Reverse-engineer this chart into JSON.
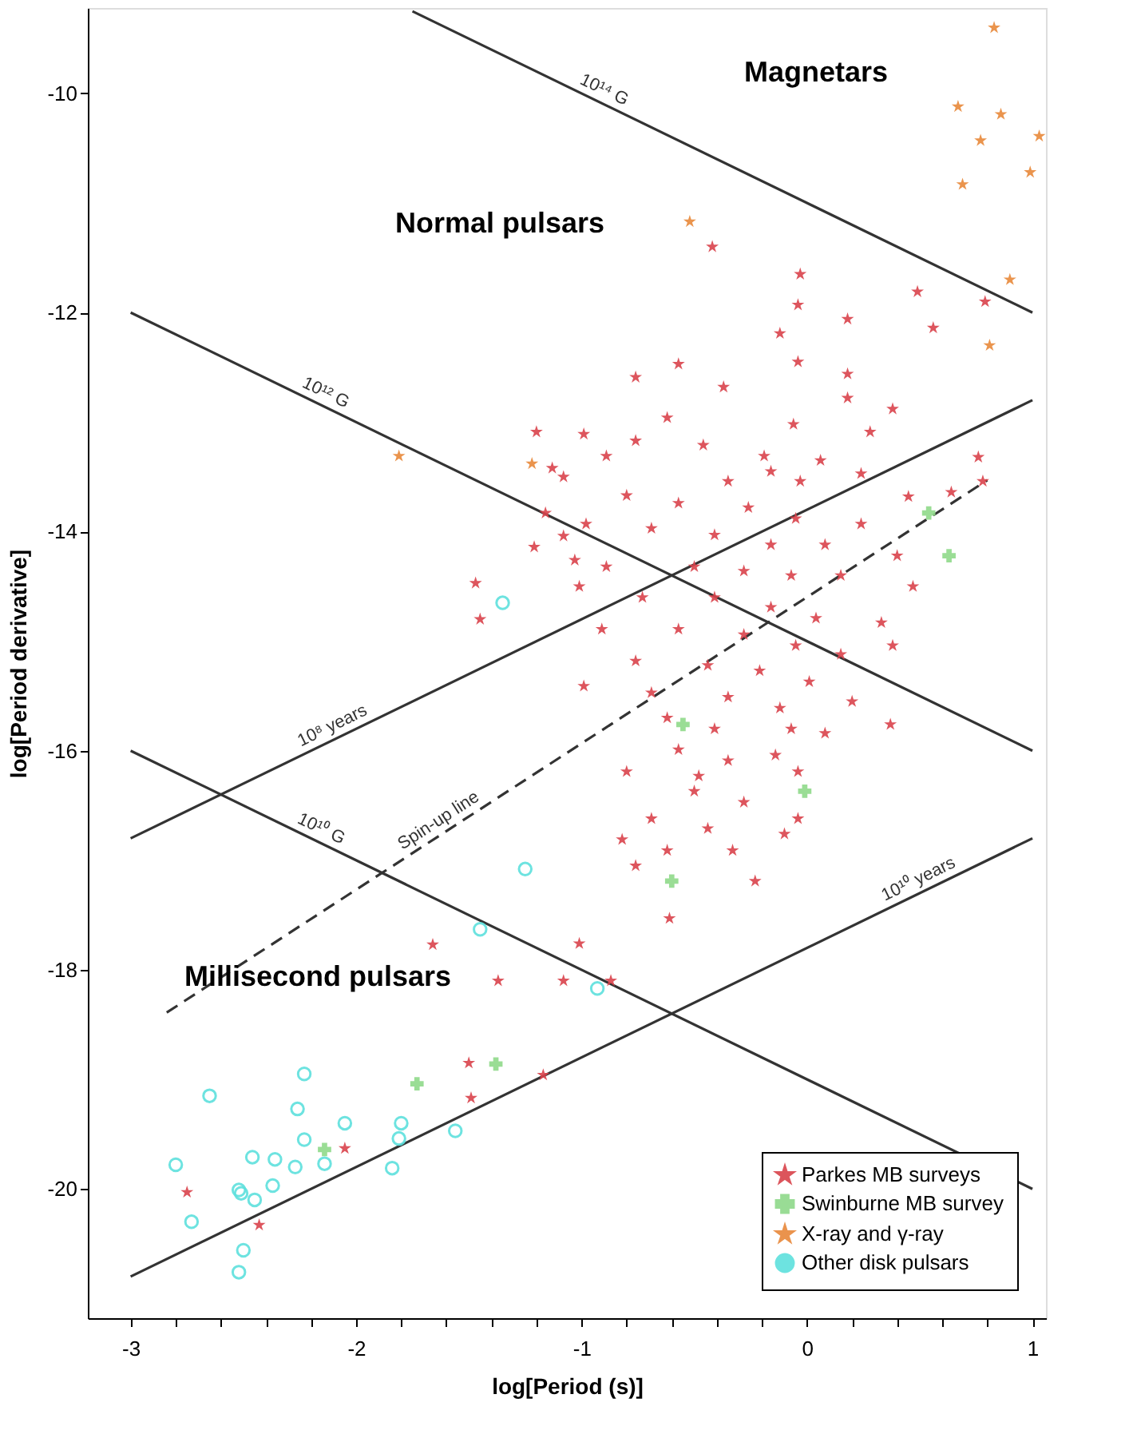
{
  "chart_data": {
    "type": "scatter",
    "xlabel": "log[Period (s)]",
    "ylabel": "log[Period derivative]",
    "xlim": [
      -3.19,
      1.06
    ],
    "ylim": [
      -21.18,
      -9.22
    ],
    "xticks": [
      -3,
      {
        "value": -2.8,
        "label": null
      },
      {
        "value": -2.6,
        "label": null
      },
      {
        "value": -2.4,
        "label": null
      },
      {
        "value": -2.2,
        "label": null
      },
      -2,
      {
        "value": -1.8,
        "label": null
      },
      {
        "value": -1.6,
        "label": null
      },
      {
        "value": -1.4,
        "label": null
      },
      {
        "value": -1.2,
        "label": null
      },
      -1,
      {
        "value": -0.8,
        "label": null
      },
      {
        "value": -0.6,
        "label": null
      },
      {
        "value": -0.4,
        "label": null
      },
      {
        "value": -0.2,
        "label": null
      },
      0,
      {
        "value": 0.2,
        "label": null
      },
      {
        "value": 0.4,
        "label": null
      },
      {
        "value": 0.6,
        "label": null
      },
      {
        "value": 0.8,
        "label": null
      },
      1
    ],
    "yticks": [
      -20,
      -18,
      -16,
      -14,
      -12,
      -10
    ],
    "grid": false,
    "legend": "bottom right",
    "series": [
      {
        "type": "line",
        "name": "10¹⁴ G",
        "color": "#333333",
        "line_style": "solid",
        "marker": "none",
        "x": [
          -1.75,
          1.0
        ],
        "values": [
          -9.25,
          -12.0
        ]
      },
      {
        "type": "line",
        "name": "10¹² G",
        "color": "#333333",
        "line_style": "solid",
        "marker": "none",
        "x": [
          -3,
          1
        ],
        "values": [
          -12,
          -16
        ]
      },
      {
        "type": "line",
        "name": "10¹⁰ G",
        "color": "#333333",
        "line_style": "solid",
        "marker": "none",
        "x": [
          -3,
          1
        ],
        "values": [
          -16,
          -20
        ]
      },
      {
        "type": "line",
        "name": "10⁸ years",
        "color": "#333333",
        "line_style": "solid",
        "marker": "none",
        "x": [
          -3,
          1
        ],
        "values": [
          -16.8,
          -12.8
        ]
      },
      {
        "type": "line",
        "name": "10¹⁰ years",
        "color": "#333333",
        "line_style": "solid",
        "marker": "none",
        "x": [
          -3,
          1
        ],
        "values": [
          -20.8,
          -16.8
        ]
      },
      {
        "type": "line",
        "name": "Spin-up line",
        "color": "#333333",
        "line_style": "dashed",
        "marker": "none",
        "x": [
          -2.84,
          0.8
        ],
        "values": [
          -18.39,
          -13.53
        ]
      },
      {
        "name": "Parkes MB surveys",
        "color": "#d9434b",
        "marker": "star",
        "x": [
          -1.2,
          -0.99,
          -1.13,
          -1.08,
          -1.16,
          -1.21,
          -1.03,
          -1.47,
          -1.01,
          -1.08,
          -1.45,
          -1.66,
          -1.01,
          -1.37,
          -1.08,
          -1.5,
          -1.17,
          -1.49,
          -2.05,
          -2.75,
          -2.43,
          -0.87,
          -0.42,
          -0.03,
          -0.04,
          0.18,
          -0.12,
          0.49,
          0.56,
          0.79,
          0.76,
          0.64,
          0.78,
          0.37,
          -0.04,
          0.18,
          -0.57,
          -0.76,
          -0.37,
          0.18,
          0.38,
          -0.62,
          -0.06,
          0.28,
          -0.76,
          -0.46,
          -0.19,
          0.06,
          -0.89,
          -0.16,
          -0.35,
          -0.03,
          0.24,
          0.45,
          -0.8,
          -0.57,
          -0.26,
          -0.05,
          0.24,
          -0.69,
          -0.41,
          -0.16,
          0.08,
          0.4,
          -0.89,
          -0.5,
          -0.28,
          -0.07,
          0.15,
          0.47,
          -0.73,
          -0.41,
          -0.16,
          0.04,
          0.33,
          -0.91,
          -0.57,
          -0.28,
          -0.05,
          0.15,
          0.38,
          -0.76,
          -0.44,
          -0.21,
          0.01,
          -0.69,
          -0.35,
          -0.12,
          0.2,
          -0.62,
          -0.41,
          -0.07,
          0.08,
          -0.57,
          -0.35,
          -0.14,
          -0.8,
          -0.48,
          -0.04,
          -0.5,
          -0.28,
          -0.69,
          -0.44,
          -0.1,
          -0.04,
          -0.62,
          -0.33,
          -0.23,
          -0.76,
          -0.61,
          -0.98,
          -0.99,
          -0.82
        ],
        "values": [
          -13.09,
          -13.11,
          -13.42,
          -13.5,
          -13.83,
          -14.14,
          -14.26,
          -14.47,
          -14.5,
          -14.04,
          -14.8,
          -17.77,
          -17.76,
          -18.1,
          -18.1,
          -18.85,
          -18.96,
          -19.17,
          -19.63,
          -20.03,
          -20.33,
          -18.1,
          -11.4,
          -11.65,
          -11.93,
          -12.06,
          -12.19,
          -11.81,
          -12.14,
          -11.9,
          -13.32,
          -13.64,
          -13.54,
          -15.76,
          -12.45,
          -12.56,
          -12.47,
          -12.59,
          -12.68,
          -12.78,
          -12.88,
          -12.96,
          -13.02,
          -13.09,
          -13.17,
          -13.21,
          -13.31,
          -13.35,
          -13.31,
          -13.45,
          -13.54,
          -13.54,
          -13.47,
          -13.68,
          -13.67,
          -13.74,
          -13.78,
          -13.88,
          -13.93,
          -13.97,
          -14.03,
          -14.12,
          -14.12,
          -14.22,
          -14.32,
          -14.32,
          -14.36,
          -14.4,
          -14.4,
          -14.5,
          -14.6,
          -14.6,
          -14.69,
          -14.79,
          -14.83,
          -14.89,
          -14.89,
          -14.94,
          -15.04,
          -15.12,
          -15.04,
          -15.18,
          -15.22,
          -15.27,
          -15.37,
          -15.47,
          -15.51,
          -15.61,
          -15.55,
          -15.7,
          -15.8,
          -15.8,
          -15.84,
          -15.99,
          -16.09,
          -16.04,
          -16.19,
          -16.23,
          -16.19,
          -16.37,
          -16.47,
          -16.62,
          -16.71,
          -16.76,
          -16.62,
          -16.91,
          -16.91,
          -17.19,
          -17.05,
          -17.53,
          -13.93,
          -15.41,
          -16.81
        ]
      },
      {
        "name": "Swinburne MB survey",
        "color": "#8fd98a",
        "marker": "cross",
        "x": [
          -1.38,
          -1.73,
          -2.14,
          0.54,
          0.63,
          -0.55,
          -0.01,
          -0.6
        ],
        "values": [
          -18.86,
          -19.04,
          -19.64,
          -13.83,
          -14.22,
          -15.76,
          -16.37,
          -17.19
        ]
      },
      {
        "name": "X-ray and γ-ray",
        "color": "#e8883a",
        "marker": "star",
        "x": [
          0.83,
          0.67,
          0.86,
          0.77,
          1.03,
          0.69,
          0.99,
          0.9,
          0.81,
          -0.52,
          -1.81,
          -1.22
        ],
        "values": [
          -9.4,
          -10.12,
          -10.19,
          -10.43,
          -10.39,
          -10.83,
          -10.72,
          -11.7,
          -12.3,
          -11.17,
          -13.31,
          -13.38
        ]
      },
      {
        "name": "Other disk pulsars",
        "color": "#5ee0dd",
        "marker": "circle",
        "x": [
          -1.25,
          -1.45,
          -2.23,
          -2.65,
          -2.26,
          -2.05,
          -1.8,
          -2.23,
          -1.81,
          -1.56,
          -2.46,
          -2.36,
          -2.27,
          -2.14,
          -2.8,
          -2.52,
          -2.37,
          -1.84,
          -2.73,
          -2.51,
          -2.45,
          -2.5,
          -2.52,
          -1.35,
          -0.93
        ],
        "values": [
          -17.08,
          -17.63,
          -18.95,
          -19.15,
          -19.27,
          -19.4,
          -19.4,
          -19.55,
          -19.54,
          -19.47,
          -19.71,
          -19.73,
          -19.8,
          -19.77,
          -19.78,
          -20.01,
          -19.97,
          -19.81,
          -20.3,
          -20.04,
          -20.1,
          -20.56,
          -20.76,
          -14.65,
          -18.17
        ]
      }
    ],
    "annotations": [
      "Magnetars",
      "Normal pulsars",
      "Millisecond pulsars"
    ]
  }
}
